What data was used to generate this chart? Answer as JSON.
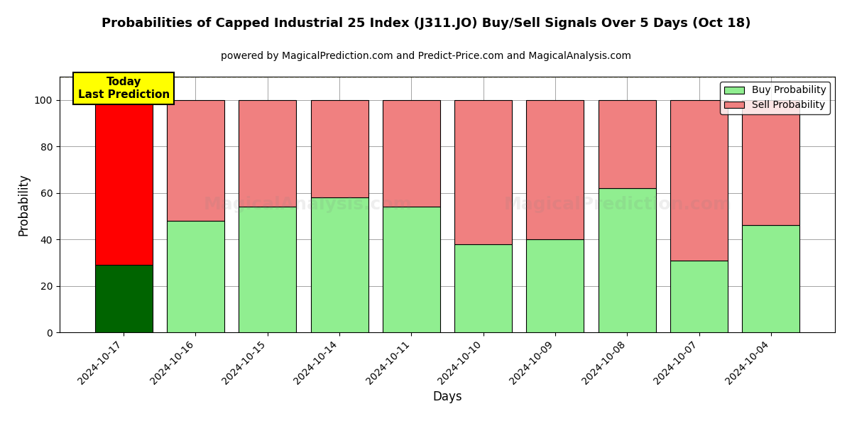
{
  "title": "Probabilities of Capped Industrial 25 Index (J311.JO) Buy/Sell Signals Over 5 Days (Oct 18)",
  "subtitle": "powered by MagicalPrediction.com and Predict-Price.com and MagicalAnalysis.com",
  "xlabel": "Days",
  "ylabel": "Probability",
  "dates": [
    "2024-10-17",
    "2024-10-16",
    "2024-10-15",
    "2024-10-14",
    "2024-10-11",
    "2024-10-10",
    "2024-10-09",
    "2024-10-08",
    "2024-10-07",
    "2024-10-04"
  ],
  "buy_values": [
    29,
    48,
    54,
    58,
    54,
    38,
    40,
    62,
    31,
    46
  ],
  "sell_values": [
    71,
    52,
    46,
    42,
    46,
    62,
    60,
    38,
    69,
    54
  ],
  "today_buy_color": "#006400",
  "today_sell_color": "#FF0000",
  "buy_color": "#90EE90",
  "sell_color": "#F08080",
  "today_annotation": "Today\nLast Prediction",
  "ylim": [
    0,
    110
  ],
  "dashed_line_y": 110,
  "background_color": "#ffffff",
  "legend_buy_label": "Buy Probability",
  "legend_sell_label": "Sell Probability",
  "bar_width": 0.8
}
